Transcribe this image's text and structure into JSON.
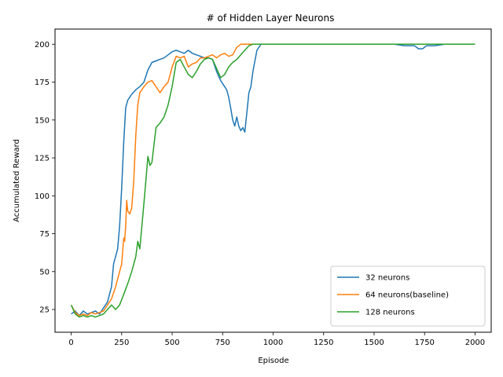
{
  "chart_data": {
    "type": "line",
    "title": "# of Hidden Layer Neurons",
    "xlabel": "Episode",
    "ylabel": "Accumulated Reward",
    "xlim": [
      -80,
      2080
    ],
    "ylim": [
      10,
      210
    ],
    "xticks": [
      0,
      250,
      500,
      750,
      1000,
      1250,
      1500,
      1750,
      2000
    ],
    "yticks": [
      25,
      50,
      75,
      100,
      125,
      150,
      175,
      200
    ],
    "grid": false,
    "legend": "lower-right",
    "series": [
      {
        "name": "32 neurons",
        "color": "#1f77b4",
        "x": [
          0,
          20,
          40,
          60,
          80,
          100,
          120,
          140,
          160,
          180,
          200,
          210,
          220,
          230,
          240,
          250,
          260,
          270,
          280,
          300,
          320,
          340,
          360,
          380,
          400,
          420,
          440,
          460,
          480,
          500,
          520,
          540,
          560,
          580,
          600,
          620,
          640,
          660,
          680,
          700,
          720,
          740,
          760,
          770,
          780,
          790,
          800,
          810,
          820,
          830,
          840,
          850,
          860,
          870,
          880,
          890,
          900,
          920,
          940,
          960,
          1000,
          1200,
          1400,
          1600,
          1650,
          1700,
          1720,
          1740,
          1760,
          1800,
          1850
        ],
        "y": [
          22,
          24,
          21,
          24,
          22,
          23,
          24,
          22,
          26,
          30,
          40,
          55,
          60,
          65,
          80,
          105,
          135,
          158,
          163,
          167,
          170,
          172,
          175,
          183,
          188,
          189,
          190,
          191,
          193,
          195,
          196,
          195,
          194,
          196,
          194,
          193,
          192,
          191,
          191,
          190,
          182,
          176,
          172,
          170,
          165,
          158,
          150,
          146,
          152,
          146,
          143,
          145,
          142,
          155,
          168,
          172,
          182,
          196,
          200,
          200,
          200,
          200,
          200,
          200,
          199,
          199,
          197,
          197,
          199,
          199,
          200
        ]
      },
      {
        "name": "64 neurons(baseline)",
        "color": "#ff7f0e",
        "x": [
          0,
          20,
          40,
          60,
          80,
          100,
          120,
          140,
          160,
          180,
          200,
          220,
          240,
          250,
          260,
          265,
          270,
          275,
          280,
          290,
          300,
          310,
          320,
          330,
          340,
          360,
          380,
          400,
          420,
          440,
          460,
          480,
          500,
          520,
          540,
          560,
          580,
          600,
          620,
          640,
          660,
          680,
          700,
          720,
          740,
          760,
          780,
          800,
          820,
          840,
          860,
          900,
          1000,
          1200,
          1400,
          1600,
          1800,
          2000
        ],
        "y": [
          28,
          23,
          21,
          22,
          21,
          23,
          22,
          23,
          24,
          28,
          32,
          40,
          50,
          55,
          72,
          70,
          80,
          97,
          90,
          88,
          92,
          110,
          140,
          160,
          168,
          172,
          175,
          176,
          172,
          168,
          172,
          175,
          185,
          192,
          191,
          192,
          185,
          187,
          188,
          191,
          191,
          192,
          193,
          191,
          193,
          194,
          192,
          193,
          198,
          200,
          200,
          200,
          200,
          200,
          200,
          200,
          200,
          200
        ]
      },
      {
        "name": "128 neurons",
        "color": "#2ca02c",
        "x": [
          0,
          20,
          40,
          60,
          80,
          100,
          120,
          140,
          160,
          180,
          200,
          220,
          240,
          260,
          280,
          300,
          320,
          330,
          340,
          360,
          370,
          380,
          390,
          400,
          420,
          440,
          460,
          480,
          500,
          520,
          540,
          560,
          580,
          600,
          620,
          640,
          660,
          680,
          700,
          720,
          740,
          760,
          780,
          800,
          820,
          840,
          860,
          880,
          900,
          1000,
          1200,
          1400,
          1600,
          1800,
          2000
        ],
        "y": [
          28,
          22,
          20,
          21,
          20,
          21,
          20,
          21,
          22,
          25,
          28,
          25,
          28,
          35,
          42,
          50,
          60,
          70,
          65,
          95,
          110,
          126,
          120,
          122,
          145,
          148,
          152,
          160,
          172,
          188,
          190,
          185,
          180,
          178,
          182,
          187,
          190,
          191,
          190,
          184,
          178,
          180,
          185,
          188,
          190,
          193,
          196,
          199,
          200,
          200,
          200,
          200,
          200,
          200,
          200
        ]
      }
    ]
  }
}
